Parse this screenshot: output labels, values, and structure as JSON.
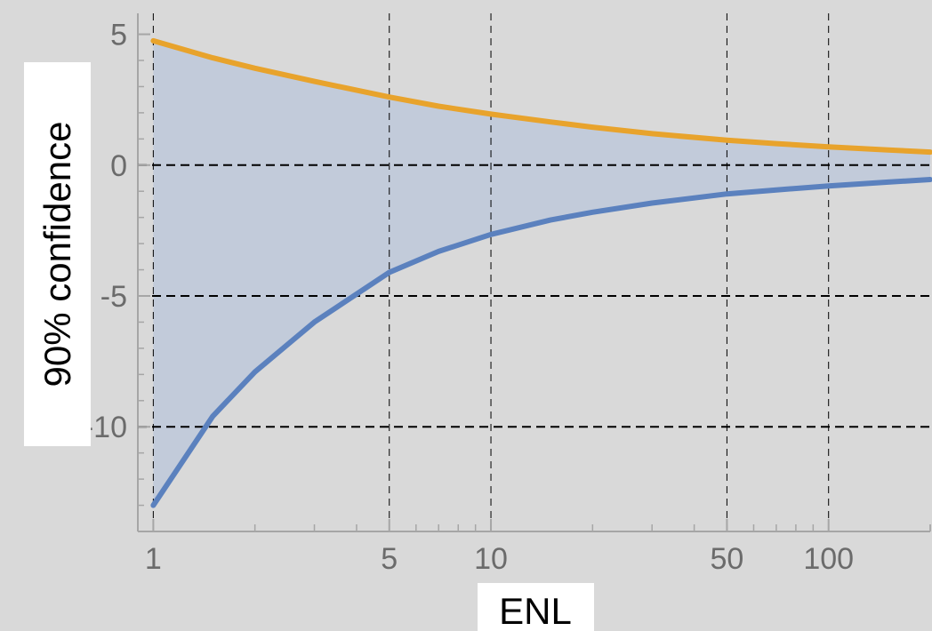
{
  "chart_data": {
    "type": "area",
    "xlabel": "ENL",
    "ylabel": "90% confidence",
    "x_scale": "log",
    "xlim": [
      0.9,
      200
    ],
    "ylim": [
      -14,
      5.8
    ],
    "x_ticks": [
      {
        "value": 1,
        "label": "1"
      },
      {
        "value": 5,
        "label": "5"
      },
      {
        "value": 10,
        "label": "10"
      },
      {
        "value": 50,
        "label": "50"
      },
      {
        "value": 100,
        "label": "100"
      }
    ],
    "y_ticks": [
      {
        "value": 5,
        "label": "5"
      },
      {
        "value": 0,
        "label": "0"
      },
      {
        "value": -5,
        "label": "-5"
      },
      {
        "value": -10,
        "label": "-10"
      }
    ],
    "grid": {
      "x_dashed_lines": [
        1,
        5,
        10,
        50,
        100
      ],
      "y_dashed_lines": [
        0,
        -5,
        -10
      ]
    },
    "series": [
      {
        "color": "#E8A32C",
        "x": [
          1,
          1.5,
          2,
          3,
          5,
          7,
          10,
          15,
          20,
          30,
          50,
          70,
          100,
          150,
          200
        ],
        "values": [
          4.75,
          4.1,
          3.7,
          3.2,
          2.6,
          2.25,
          1.95,
          1.65,
          1.45,
          1.2,
          0.95,
          0.82,
          0.7,
          0.58,
          0.5
        ]
      },
      {
        "color": "#5B81BE",
        "x": [
          1,
          1.5,
          2,
          3,
          5,
          7,
          10,
          15,
          20,
          30,
          50,
          70,
          100,
          150,
          200
        ],
        "values": [
          -13.0,
          -9.6,
          -7.9,
          -6.0,
          -4.1,
          -3.3,
          -2.65,
          -2.1,
          -1.8,
          -1.45,
          -1.1,
          -0.95,
          -0.8,
          -0.65,
          -0.55
        ]
      }
    ],
    "fill_between": {
      "color": "#B9C6DA",
      "opacity": 0.75
    },
    "colors": {
      "background": "#D9D9D9",
      "frame": "#A6A6A6",
      "grid": "#000000"
    }
  }
}
